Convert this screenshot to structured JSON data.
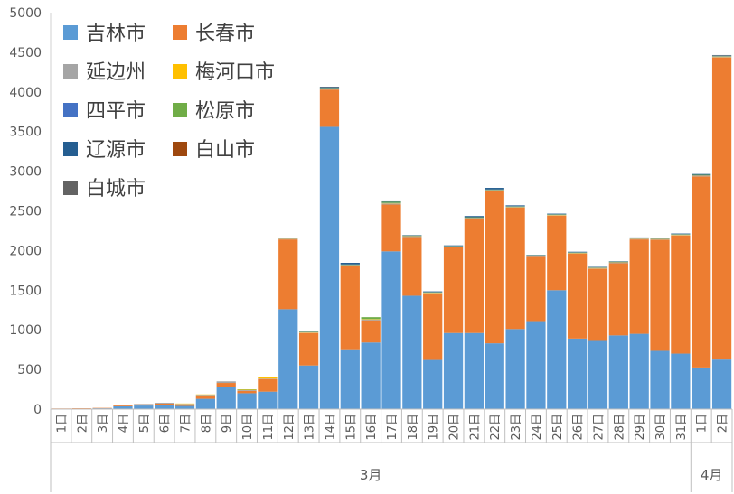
{
  "chart_data": {
    "type": "bar",
    "stacked": true,
    "ylim": [
      0,
      5000
    ],
    "yticks": [
      0,
      500,
      1000,
      1500,
      2000,
      2500,
      3000,
      3500,
      4000,
      4500,
      5000
    ],
    "grid": false,
    "legend_position": "top-left",
    "categories": [
      "1日",
      "2日",
      "3日",
      "4日",
      "5日",
      "6日",
      "7日",
      "8日",
      "9日",
      "10日",
      "11日",
      "12日",
      "13日",
      "14日",
      "15日",
      "16日",
      "17日",
      "18日",
      "19日",
      "20日",
      "21日",
      "22日",
      "23日",
      "24日",
      "25日",
      "26日",
      "27日",
      "28日",
      "29日",
      "30日",
      "31日",
      "1日",
      "2日"
    ],
    "groups": [
      {
        "label": "3月",
        "start": 0,
        "end": 30
      },
      {
        "label": "4月",
        "start": 31,
        "end": 32
      }
    ],
    "series": [
      {
        "name": "吉林市",
        "color": "#5b9bd5",
        "values": [
          3,
          5,
          10,
          35,
          45,
          50,
          40,
          130,
          280,
          200,
          220,
          1260,
          550,
          3560,
          755,
          840,
          1990,
          1430,
          620,
          960,
          960,
          830,
          1010,
          1110,
          1500,
          890,
          860,
          930,
          950,
          735,
          700,
          525,
          625
        ]
      },
      {
        "name": "长春市",
        "color": "#ed7d31",
        "values": [
          5,
          5,
          5,
          10,
          15,
          20,
          20,
          40,
          50,
          30,
          160,
          880,
          410,
          470,
          1050,
          280,
          590,
          740,
          840,
          1080,
          1440,
          1920,
          1530,
          810,
          940,
          1070,
          910,
          910,
          1190,
          1400,
          1490,
          2410,
          3810
        ]
      },
      {
        "name": "延边州",
        "color": "#a5a5a5",
        "values": [
          0,
          0,
          0,
          5,
          5,
          10,
          5,
          10,
          20,
          10,
          5,
          5,
          5,
          5,
          5,
          10,
          10,
          5,
          5,
          5,
          5,
          5,
          5,
          5,
          5,
          5,
          5,
          5,
          5,
          5,
          5,
          5,
          5
        ]
      },
      {
        "name": "梅河口市",
        "color": "#ffc000",
        "values": [
          0,
          0,
          0,
          0,
          0,
          0,
          5,
          5,
          0,
          5,
          20,
          5,
          5,
          5,
          5,
          5,
          5,
          5,
          5,
          5,
          5,
          5,
          5,
          5,
          5,
          5,
          5,
          5,
          5,
          5,
          5,
          5,
          5
        ]
      },
      {
        "name": "四平市",
        "color": "#4472c4",
        "values": [
          0,
          0,
          0,
          0,
          0,
          0,
          0,
          0,
          0,
          0,
          0,
          5,
          5,
          5,
          5,
          0,
          5,
          5,
          5,
          5,
          5,
          5,
          5,
          5,
          5,
          5,
          5,
          5,
          5,
          5,
          5,
          5,
          5
        ]
      },
      {
        "name": "松原市",
        "color": "#70ad47",
        "values": [
          0,
          0,
          0,
          0,
          0,
          0,
          0,
          0,
          0,
          5,
          0,
          5,
          5,
          5,
          5,
          25,
          15,
          5,
          5,
          5,
          5,
          5,
          5,
          5,
          5,
          5,
          5,
          5,
          5,
          5,
          5,
          5,
          5
        ]
      },
      {
        "name": "辽源市",
        "color": "#255e91",
        "values": [
          0,
          0,
          0,
          0,
          0,
          0,
          0,
          0,
          0,
          0,
          0,
          0,
          5,
          10,
          20,
          0,
          5,
          5,
          5,
          5,
          15,
          20,
          10,
          5,
          5,
          5,
          5,
          5,
          5,
          5,
          5,
          10,
          5
        ]
      },
      {
        "name": "白山市",
        "color": "#9e480e",
        "values": [
          0,
          0,
          0,
          0,
          0,
          0,
          0,
          0,
          0,
          0,
          0,
          0,
          0,
          0,
          0,
          0,
          0,
          0,
          0,
          0,
          0,
          0,
          0,
          0,
          0,
          0,
          0,
          0,
          0,
          0,
          0,
          0,
          0
        ]
      },
      {
        "name": "白城市",
        "color": "#636363",
        "values": [
          0,
          0,
          0,
          0,
          0,
          0,
          0,
          0,
          0,
          0,
          0,
          0,
          0,
          5,
          0,
          0,
          0,
          0,
          0,
          0,
          0,
          0,
          0,
          0,
          0,
          0,
          0,
          0,
          0,
          0,
          0,
          0,
          5
        ]
      }
    ]
  }
}
